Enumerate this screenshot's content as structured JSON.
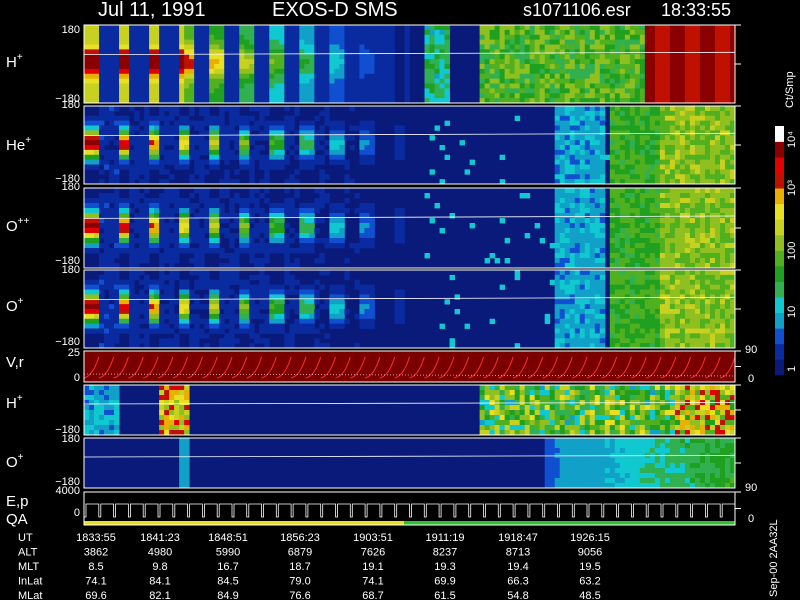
{
  "header": {
    "date": "Jul 11, 1991",
    "instrument": "EXOS-D SMS",
    "file": "s1071106.esr",
    "time": "18:33:55"
  },
  "panels": [
    {
      "label": "H",
      "sup": "+",
      "top": "180",
      "bottom": "−180"
    },
    {
      "label": "He",
      "sup": "+",
      "top": "180",
      "bottom": "−180"
    },
    {
      "label": "O",
      "sup": "++",
      "top": "180",
      "bottom": "−180"
    },
    {
      "label": "O",
      "sup": "+",
      "top": "180",
      "bottom": "−180"
    },
    {
      "label": "V,r",
      "sup": "",
      "top": "25",
      "bottom": "0",
      "right_top": "90",
      "right_bottom": "0"
    },
    {
      "label": "H",
      "sup": "+",
      "top": "180",
      "bottom": "−180"
    },
    {
      "label": "O",
      "sup": "+",
      "top": "180",
      "bottom": "−180",
      "right_bottom": "90"
    },
    {
      "label": "E,p",
      "sup": "",
      "label2": "QA",
      "top": "4000",
      "bottom": "0",
      "right_bottom": "0"
    }
  ],
  "colorbar": {
    "title": "Ct/Smp",
    "ticks": [
      "1",
      "10",
      "100",
      "10³",
      "10⁴"
    ],
    "colors": [
      "#0a1a7a",
      "#0a2aa0",
      "#1050d0",
      "#10a0c8",
      "#10c8d0",
      "#30b050",
      "#20a020",
      "#50b020",
      "#90c020",
      "#c8d020",
      "#e8e020",
      "#e8b000",
      "#c01000",
      "#e00000",
      "#8a0000",
      "#ffffff"
    ]
  },
  "footer": {
    "rows": [
      {
        "label": "UT",
        "values": [
          "1833:55",
          "1841:23",
          "1848:51",
          "1856:23",
          "1903:51",
          "1911:19",
          "1918:47",
          "1926:15"
        ]
      },
      {
        "label": "ALT",
        "values": [
          "3862",
          "4980",
          "5990",
          "6879",
          "7626",
          "8237",
          "8713",
          "9056"
        ]
      },
      {
        "label": "MLT",
        "values": [
          "8.5",
          "9.8",
          "16.7",
          "18.7",
          "19.1",
          "19.3",
          "19.4",
          "19.5"
        ]
      },
      {
        "label": "InLat",
        "values": [
          "74.1",
          "84.1",
          "84.5",
          "79.0",
          "74.1",
          "69.9",
          "66.3",
          "63.2"
        ]
      },
      {
        "label": "MLat",
        "values": [
          "69.6",
          "82.1",
          "84.9",
          "76.6",
          "68.7",
          "61.5",
          "54.8",
          "48.5"
        ]
      }
    ],
    "stamp": "Sep-00 2AA32L"
  },
  "chart_data": {
    "type": "heatmap",
    "title": "Jul 11, 1991   EXOS-D SMS",
    "xlabel": "UT",
    "x": [
      "1833:55",
      "1841:23",
      "1848:51",
      "1856:23",
      "1903:51",
      "1911:19",
      "1918:47",
      "1926:15"
    ],
    "ylim": [
      -180,
      180
    ],
    "panels": [
      "H+",
      "He+",
      "O++",
      "O+",
      "V,r",
      "H+",
      "O+",
      "E,p QA"
    ],
    "colorbar": {
      "label": "Ct/Smp",
      "scale": "log",
      "range": [
        1,
        10000
      ]
    }
  }
}
